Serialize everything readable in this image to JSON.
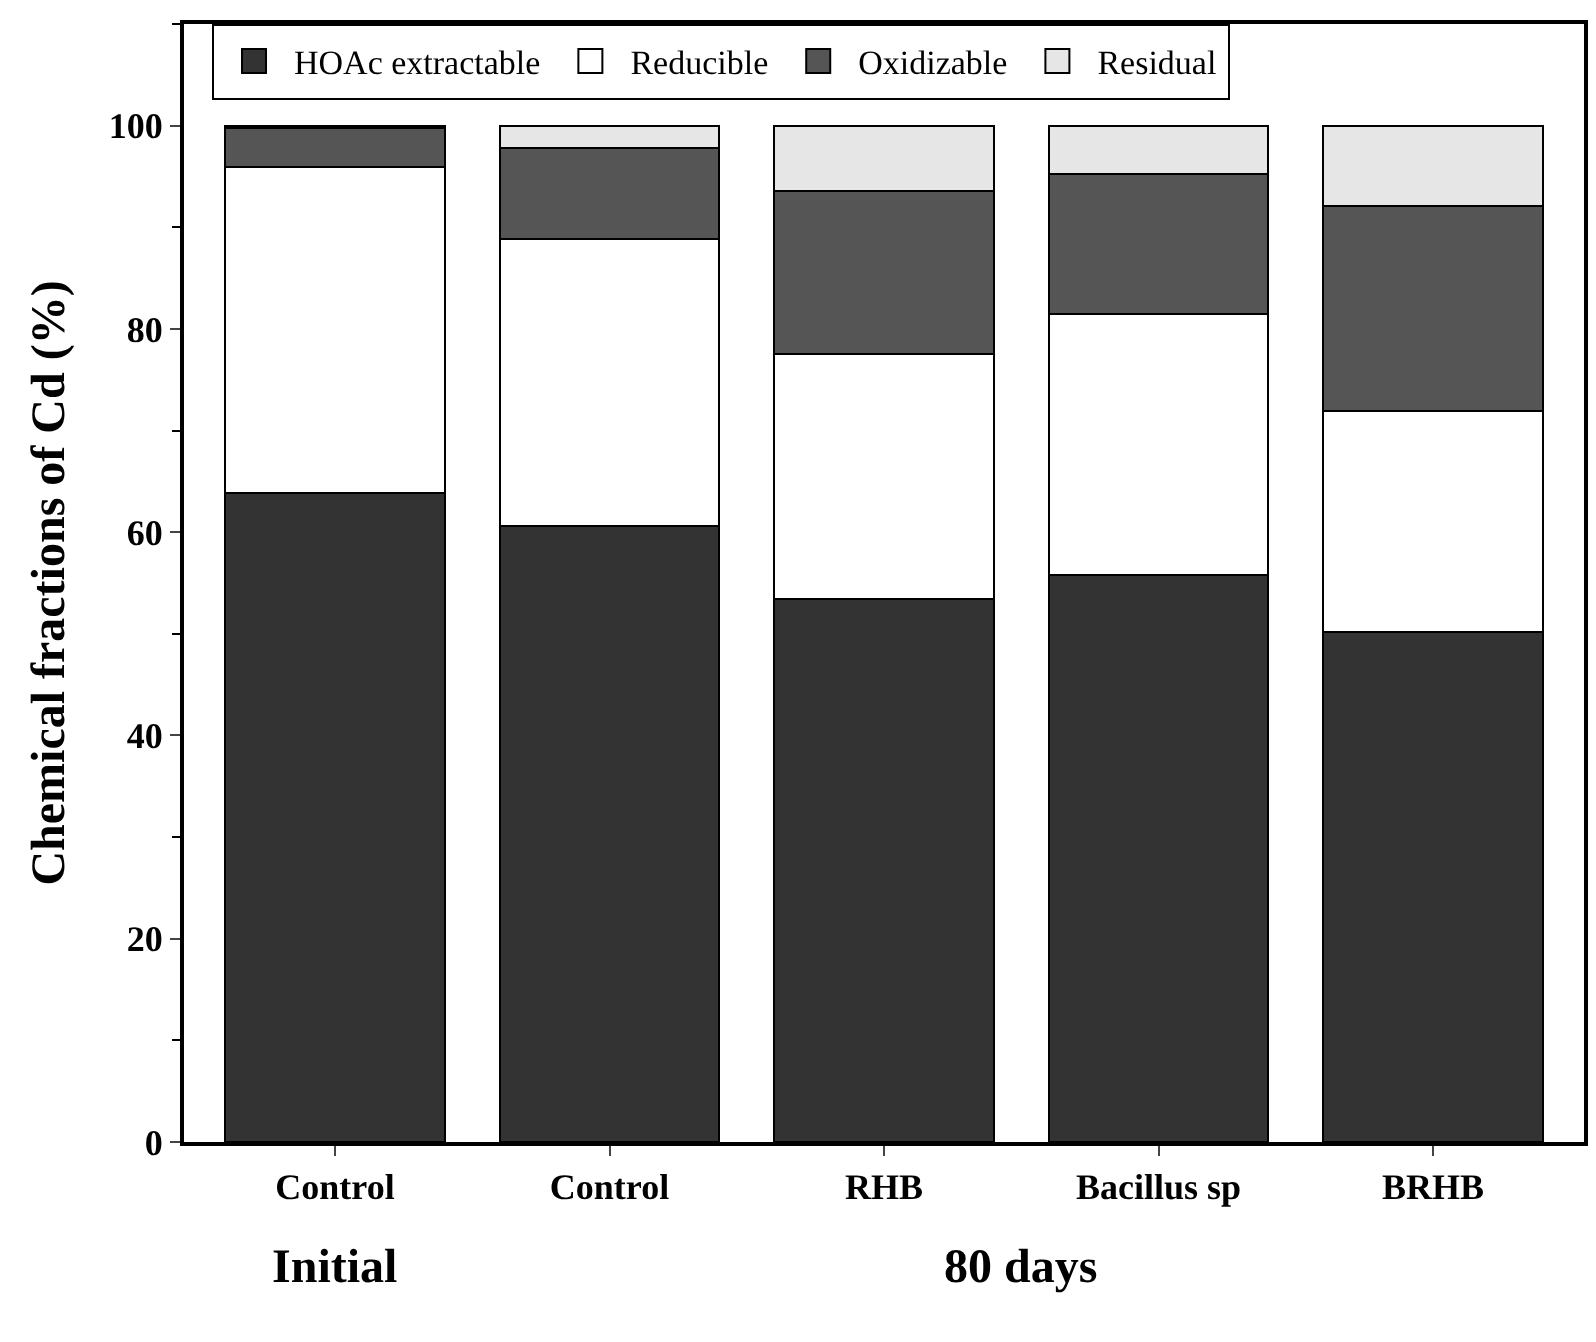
{
  "chart_data": {
    "type": "bar",
    "stacked": true,
    "ylabel": "Chemical fractions of Cd (%)",
    "categories": [
      "Control",
      "Control",
      "RHB",
      "Bacillus sp",
      "BRHB"
    ],
    "series": [
      {
        "name": "HOAc extractable",
        "color": "#333333",
        "values": [
          63.9,
          60.6,
          53.4,
          55.8,
          50.2
        ]
      },
      {
        "name": "Reducible",
        "color": "#ffffff",
        "values": [
          32.0,
          28.2,
          24.1,
          25.7,
          21.7
        ]
      },
      {
        "name": "Oxidizable",
        "color": "#555555",
        "values": [
          3.9,
          9.0,
          16.1,
          13.7,
          20.2
        ]
      },
      {
        "name": "Residual",
        "color": "#e6e6e6",
        "values": [
          0.2,
          2.2,
          6.4,
          4.8,
          7.9
        ]
      }
    ],
    "ylim": [
      0,
      110
    ],
    "yticks": [
      0,
      20,
      40,
      60,
      80,
      100
    ],
    "legend": "top",
    "annotations": [
      "Initial",
      "80 days"
    ]
  }
}
